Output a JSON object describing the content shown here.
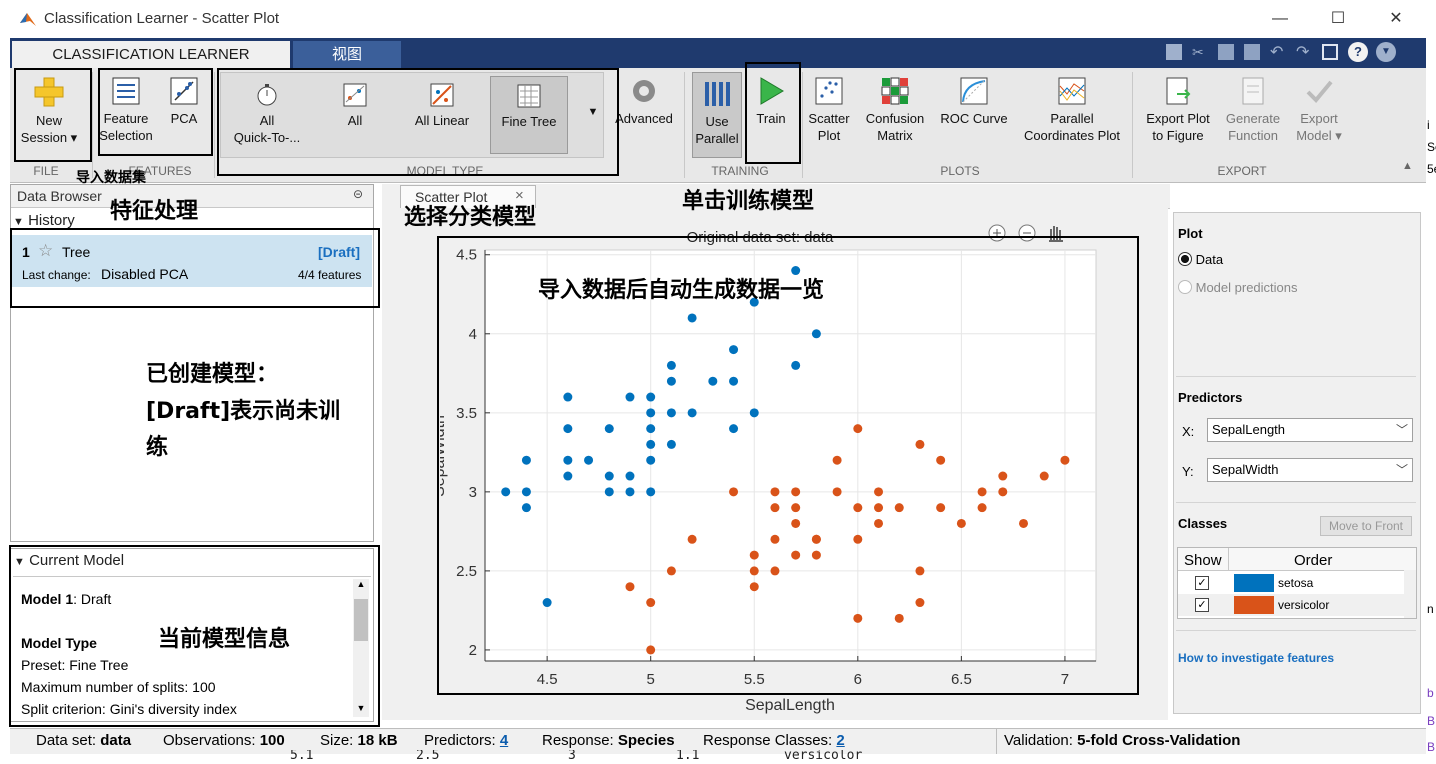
{
  "window": {
    "title": "Classification Learner - Scatter Plot",
    "minimize": "—",
    "maximize": "☐",
    "close": "✕"
  },
  "tabs": {
    "classification_learner": "CLASSIFICATION LEARNER",
    "view": "视图"
  },
  "ribbon": {
    "new_session": [
      "New",
      "Session ▾"
    ],
    "feature_selection": [
      "Feature",
      "Selection"
    ],
    "pca": "PCA",
    "model_all_quick": [
      "All",
      "Quick-To-..."
    ],
    "model_all": "All",
    "model_all_linear": "All Linear",
    "model_fine_tree": "Fine Tree",
    "advanced": "Advanced",
    "use_parallel": [
      "Use",
      "Parallel"
    ],
    "train": "Train",
    "scatter_plot": [
      "Scatter",
      "Plot"
    ],
    "confusion_matrix": [
      "Confusion",
      "Matrix"
    ],
    "roc_curve": "ROC Curve",
    "parallel_coords": [
      "Parallel",
      "Coordinates Plot"
    ],
    "export_plot": [
      "Export Plot",
      "to Figure"
    ],
    "generate_function": [
      "Generate",
      "Function"
    ],
    "export_model": [
      "Export",
      "Model ▾"
    ],
    "groups": {
      "file": "FILE",
      "features": "FEATURES",
      "model_type": "MODEL TYPE",
      "training": "TRAINING",
      "plots": "PLOTS",
      "export": "EXPORT"
    }
  },
  "annotations": {
    "import": "导入数据集",
    "features": "特征处理",
    "choose_model": "选择分类模型",
    "train_click": "单击训练模型",
    "auto_overview": "导入数据后自动生成数据一览",
    "created_model": [
      "已创建模型：",
      "[Draft]表示尚未训",
      "练"
    ],
    "current_model_info": "当前模型信息"
  },
  "data_browser": {
    "title": "Data Browser",
    "history_label": "History",
    "history_item": {
      "num": "1",
      "name": "Tree",
      "status": "[Draft]",
      "last_change_label": "Last change:",
      "last_change": "Disabled PCA",
      "features": "4/4 features"
    }
  },
  "current_model": {
    "title": "Current Model",
    "model_label": "Model 1",
    "model_state": ": Draft",
    "model_type_heading": "Model Type",
    "lines": [
      "Preset: Fine Tree",
      "Maximum number of splits: 100",
      "Split criterion: Gini's diversity index"
    ]
  },
  "plot_tab": {
    "label": "Scatter Plot",
    "close": "×"
  },
  "chart_data": {
    "type": "scatter",
    "title": "Original data set: data",
    "xlabel": "SepalLength",
    "ylabel": "SepalWidth",
    "xlim": [
      4.2,
      7.15
    ],
    "ylim": [
      1.93,
      4.53
    ],
    "xticks": [
      "4.5",
      "5",
      "5.5",
      "6",
      "6.5",
      "7"
    ],
    "yticks": [
      "2",
      "2.5",
      "3",
      "3.5",
      "4",
      "4.5"
    ],
    "grid": true,
    "series": [
      {
        "name": "setosa",
        "color": "#0072bd",
        "x": [
          5.7,
          5.5,
          5.2,
          5.8,
          5.4,
          5.7,
          5.1,
          5.1,
          5.3,
          5.4,
          4.6,
          4.9,
          5.0,
          4.6,
          4.8,
          5.0,
          5.1,
          5.2,
          5.4,
          5.0,
          5.0,
          5.1,
          5.5,
          4.6,
          4.7,
          5.0,
          4.4,
          4.8,
          4.9,
          4.3,
          4.4,
          4.6,
          4.8,
          4.9,
          5.0,
          4.4,
          4.5
        ],
        "y": [
          4.4,
          4.2,
          4.1,
          4.0,
          3.9,
          3.8,
          3.8,
          3.7,
          3.7,
          3.7,
          3.6,
          3.6,
          3.6,
          3.4,
          3.4,
          3.5,
          3.5,
          3.5,
          3.4,
          3.3,
          3.2,
          3.3,
          3.5,
          3.2,
          3.2,
          3.4,
          3.2,
          3.1,
          3.1,
          3.0,
          3.0,
          3.1,
          3.0,
          3.0,
          3.0,
          2.9,
          2.3
        ]
      },
      {
        "name": "versicolor",
        "color": "#d95319",
        "x": [
          6.0,
          6.3,
          5.9,
          6.4,
          6.7,
          6.9,
          7.0,
          5.4,
          5.6,
          5.7,
          5.9,
          6.1,
          6.6,
          6.7,
          5.6,
          5.7,
          6.0,
          6.1,
          6.2,
          6.4,
          6.6,
          5.8,
          6.5,
          6.8,
          5.2,
          5.6,
          5.7,
          5.8,
          6.0,
          6.1,
          5.1,
          5.5,
          5.6,
          5.7,
          5.8,
          5.5,
          6.3,
          4.9,
          5.5,
          6.3,
          5.0,
          6.0,
          6.2,
          5.0
        ],
        "y": [
          3.4,
          3.3,
          3.2,
          3.2,
          3.1,
          3.1,
          3.2,
          3.0,
          3.0,
          3.0,
          3.0,
          3.0,
          3.0,
          3.0,
          2.9,
          2.9,
          2.9,
          2.9,
          2.9,
          2.9,
          2.9,
          2.7,
          2.8,
          2.8,
          2.7,
          2.7,
          2.8,
          2.7,
          2.7,
          2.8,
          2.5,
          2.6,
          2.5,
          2.6,
          2.6,
          2.5,
          2.5,
          2.4,
          2.4,
          2.3,
          2.3,
          2.2,
          2.2,
          2.0
        ]
      }
    ]
  },
  "right_panel": {
    "plot_heading": "Plot",
    "radio_data": "Data",
    "radio_predictions": "Model predictions",
    "predictors_heading": "Predictors",
    "x_label": "X:",
    "x_value": "SepalLength",
    "y_label": "Y:",
    "y_value": "SepalWidth",
    "classes_heading": "Classes",
    "move_front": "Move to Front",
    "col_show": "Show",
    "col_order": "Order",
    "class1": "setosa",
    "class1_color": "#0072bd",
    "class2": "versicolor",
    "class2_color": "#d95319",
    "help_link": "How to investigate features"
  },
  "status": {
    "dataset_label": "Data set:",
    "dataset": "data",
    "obs_label": "Observations:",
    "obs": "100",
    "size_label": "Size:",
    "size": "18 kB",
    "pred_label": "Predictors:",
    "pred": "4",
    "resp_label": "Response:",
    "resp": "Species",
    "classes_label": "Response Classes:",
    "classes": "2",
    "valid_label": "Validation:",
    "valid": "5-fold Cross-Validation"
  },
  "background_text": {
    "row": [
      "5.1",
      "2.5",
      "3",
      "1.1",
      "versicolor"
    ],
    "right_frag": [
      "i",
      "Se",
      "5e",
      "n",
      "b",
      "B",
      "B"
    ]
  }
}
